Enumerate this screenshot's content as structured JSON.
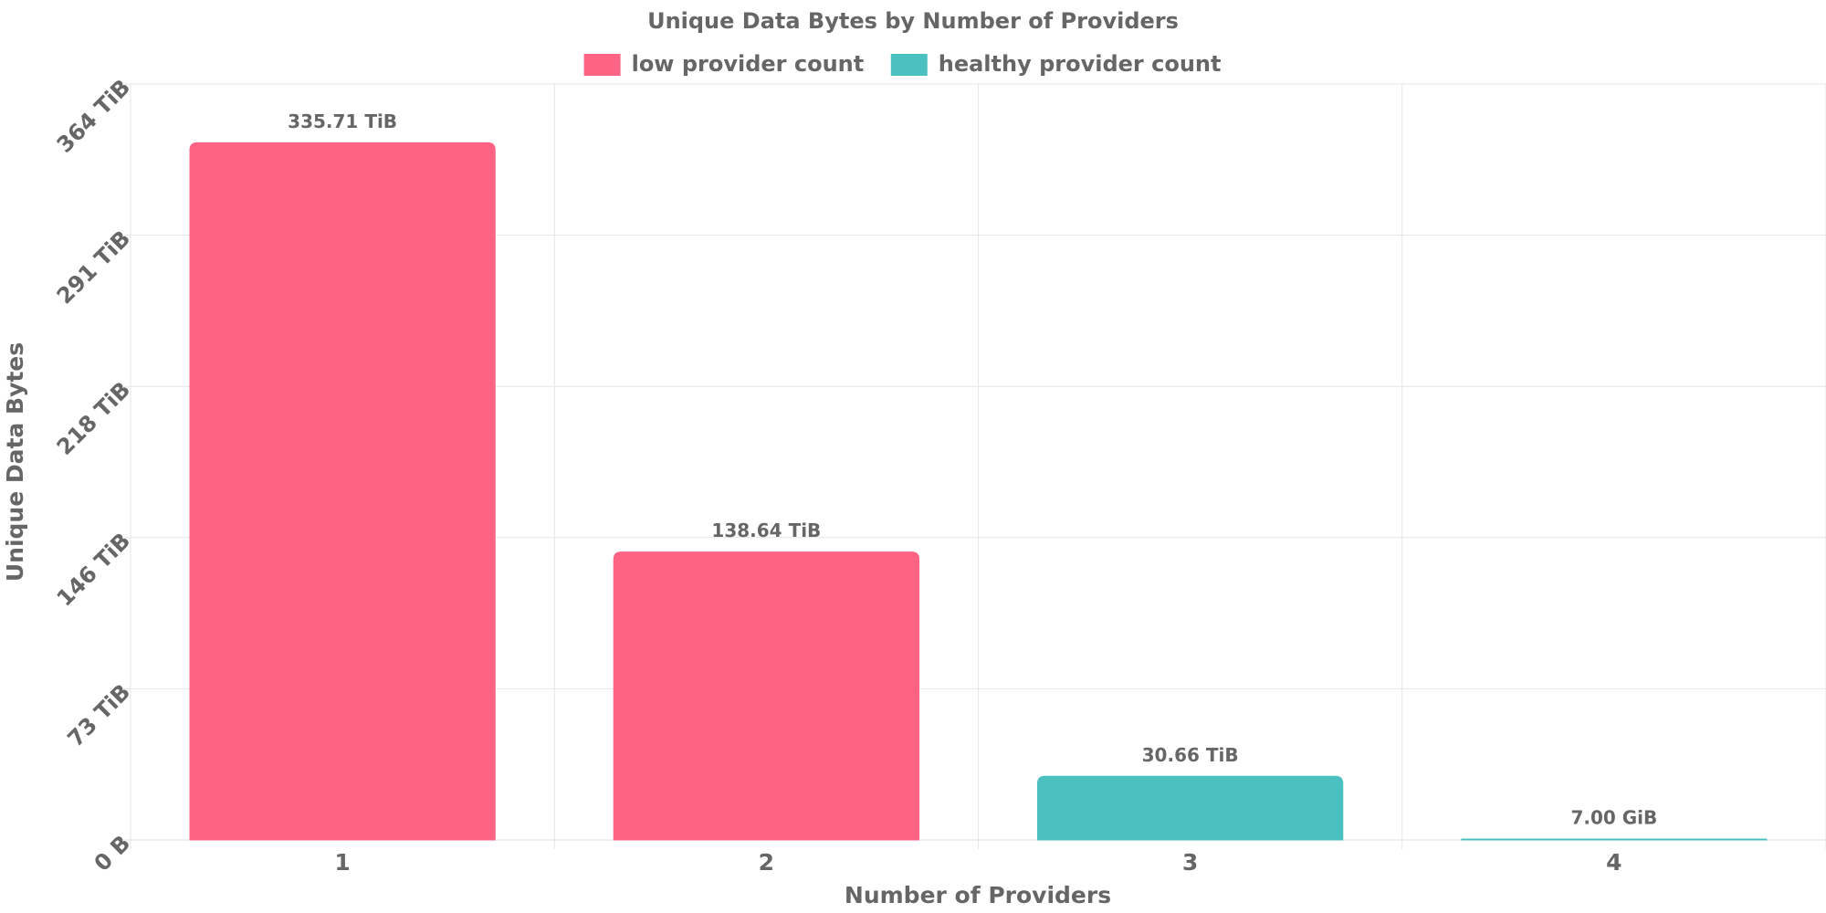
{
  "chart_data": {
    "type": "bar",
    "title": "Unique Data Bytes by Number of Providers",
    "xlabel": "Number of Providers",
    "ylabel": "Unique Data Bytes",
    "categories": [
      "1",
      "2",
      "3",
      "4"
    ],
    "values_tib": [
      335.71,
      138.64,
      30.66,
      0.00684
    ],
    "value_labels": [
      "335.71 TiB",
      "138.64 TiB",
      "30.66 TiB",
      "7.00 GiB"
    ],
    "bar_series": [
      "low provider count",
      "low provider count",
      "healthy provider count",
      "healthy provider count"
    ],
    "series": [
      {
        "name": "low provider count",
        "color": "#ff6384"
      },
      {
        "name": "healthy provider count",
        "color": "#4bc0c0"
      }
    ],
    "yticks": [
      "0 B",
      "73 TiB",
      "146 TiB",
      "218 TiB",
      "291 TiB",
      "364 TiB"
    ],
    "ylim": [
      0,
      364
    ],
    "grid": true,
    "legend_position": "top"
  }
}
